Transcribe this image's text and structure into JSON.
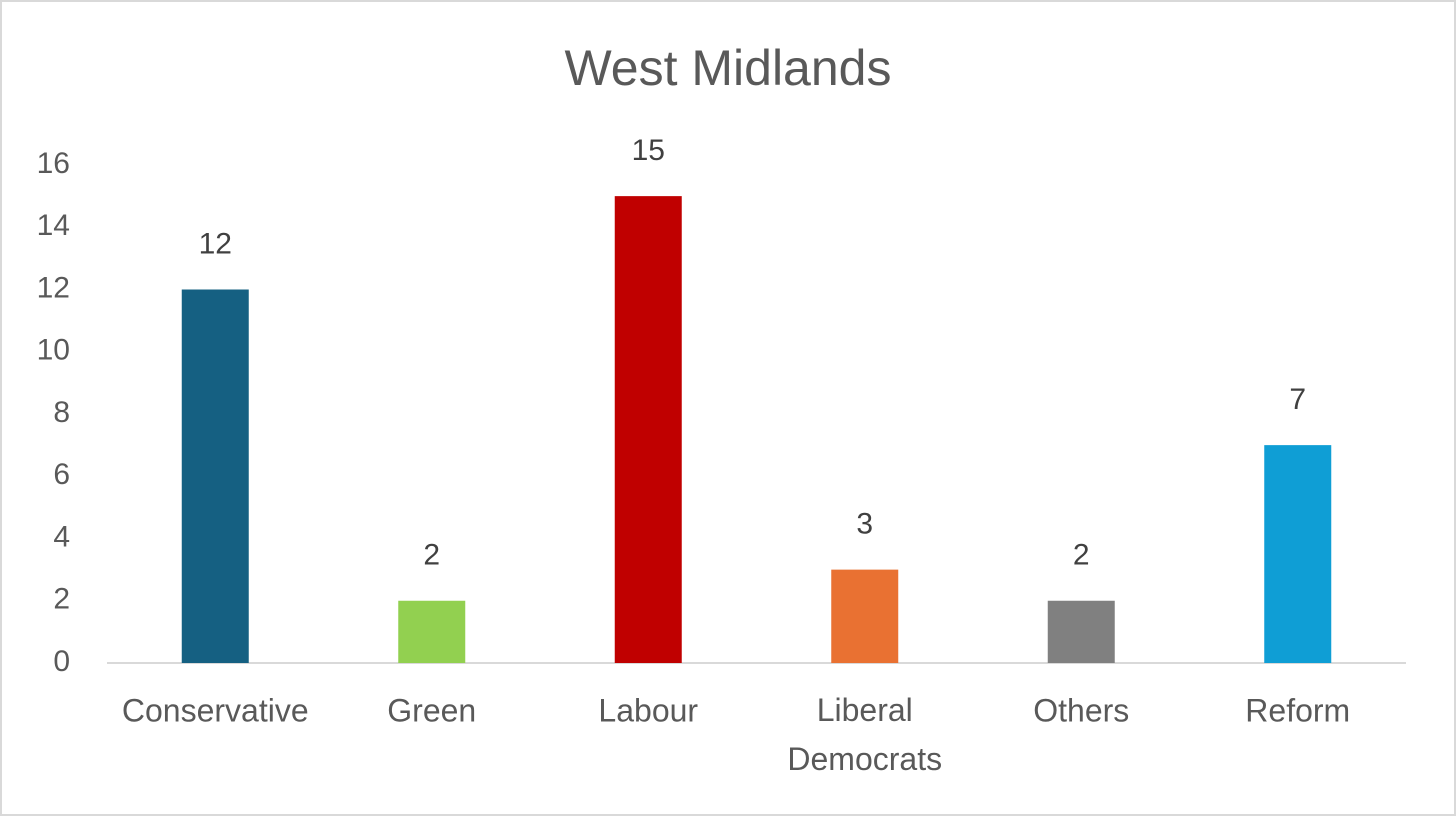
{
  "chart_data": {
    "type": "bar",
    "title": "West Midlands",
    "categories": [
      "Conservative",
      "Green",
      "Labour",
      "Liberal Democrats",
      "Others",
      "Reform"
    ],
    "values": [
      12,
      2,
      15,
      3,
      2,
      7
    ],
    "colors": [
      "#156082",
      "#92d050",
      "#c00000",
      "#e97132",
      "#808080",
      "#0f9ed5"
    ],
    "ylim": [
      0,
      16
    ],
    "yticks": [
      0,
      2,
      4,
      6,
      8,
      10,
      12,
      14,
      16
    ],
    "grid": false,
    "data_labels": true
  }
}
